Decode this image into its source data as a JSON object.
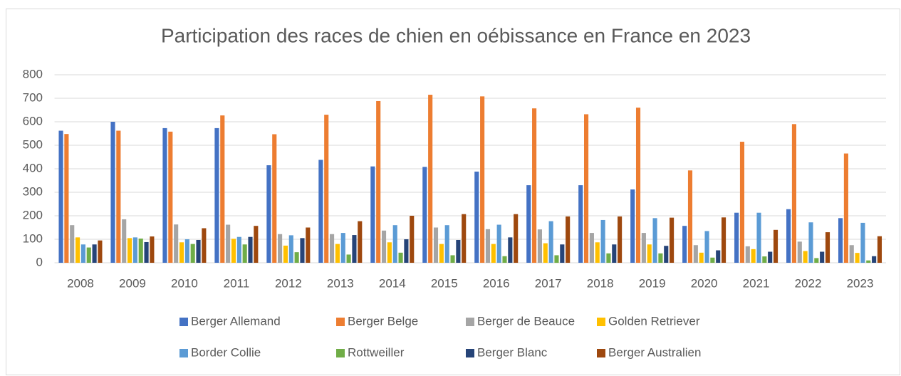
{
  "chart_data": {
    "type": "bar",
    "title": "Participation des races de chien en oébissance en France en 2023",
    "categories": [
      "2008",
      "2009",
      "2010",
      "2011",
      "2012",
      "2013",
      "2014",
      "2015",
      "2016",
      "2017",
      "2018",
      "2019",
      "2020",
      "2021",
      "2022",
      "2023"
    ],
    "series": [
      {
        "name": "Berger Allemand",
        "color": "#4472c4",
        "values": [
          562,
          600,
          573,
          573,
          415,
          438,
          410,
          408,
          388,
          330,
          330,
          312,
          157,
          213,
          228,
          190
        ]
      },
      {
        "name": "Berger Belge",
        "color": "#ed7d31",
        "values": [
          548,
          562,
          558,
          627,
          547,
          630,
          688,
          715,
          708,
          657,
          632,
          660,
          393,
          515,
          590,
          465
        ]
      },
      {
        "name": "Berger de Beauce",
        "color": "#a5a5a5",
        "values": [
          160,
          185,
          163,
          162,
          122,
          122,
          137,
          150,
          143,
          142,
          127,
          127,
          75,
          70,
          90,
          75
        ]
      },
      {
        "name": "Golden Retriever",
        "color": "#ffc000",
        "values": [
          108,
          105,
          87,
          102,
          73,
          80,
          87,
          80,
          80,
          83,
          87,
          78,
          43,
          58,
          50,
          42
        ]
      },
      {
        "name": "Border Collie",
        "color": "#5b9bd5",
        "values": [
          78,
          108,
          100,
          110,
          117,
          127,
          160,
          160,
          162,
          177,
          182,
          190,
          135,
          213,
          172,
          170
        ]
      },
      {
        "name": "Rottweiller",
        "color": "#70ad47",
        "values": [
          65,
          103,
          80,
          78,
          45,
          35,
          43,
          32,
          28,
          32,
          40,
          40,
          22,
          27,
          20,
          10
        ]
      },
      {
        "name": "Berger Blanc",
        "color": "#264478",
        "values": [
          78,
          88,
          97,
          110,
          105,
          118,
          100,
          97,
          108,
          78,
          78,
          72,
          53,
          47,
          47,
          28
        ]
      },
      {
        "name": "Berger Australien",
        "color": "#9e480e",
        "values": [
          95,
          112,
          147,
          157,
          150,
          177,
          200,
          207,
          207,
          197,
          197,
          192,
          193,
          140,
          130,
          113
        ]
      }
    ],
    "ylim": [
      0,
      800
    ],
    "yticks": [
      0,
      100,
      200,
      300,
      400,
      500,
      600,
      700,
      800
    ],
    "grid": true,
    "legend": "bottom"
  }
}
